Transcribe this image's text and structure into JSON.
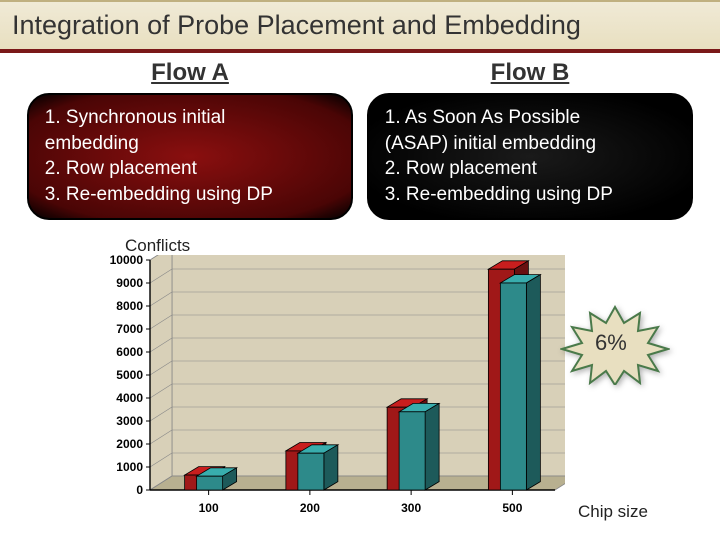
{
  "title": "Integration of Probe Placement and Embedding",
  "flowA": {
    "header": "Flow A",
    "lines": [
      "1. Synchronous initial",
      "embedding",
      "2. Row placement",
      "3. Re-embedding using DP"
    ]
  },
  "flowB": {
    "header": "Flow B",
    "lines": [
      "1. As Soon As Possible",
      "(ASAP) initial embedding",
      "2. Row placement",
      "3. Re-embedding using DP"
    ]
  },
  "chart": {
    "type": "3d-bar",
    "ylabel": "Conflicts",
    "xlabel": "Chip size",
    "categories": [
      "100",
      "200",
      "300",
      "500"
    ],
    "seriesA": [
      650,
      1700,
      3600,
      9600
    ],
    "seriesB": [
      600,
      1600,
      3400,
      9000
    ],
    "colorA": "#a01818",
    "colorB": "#2d8a8a",
    "ylim": [
      0,
      10000
    ],
    "ytick_step": 1000,
    "yticks": [
      "0",
      "1000",
      "2000",
      "3000",
      "4000",
      "5000",
      "6000",
      "7000",
      "8000",
      "9000",
      "10000"
    ],
    "wall_color": "#d8d0b8",
    "floor_color": "#b8b090",
    "grid_color": "#888",
    "axis_label_fontsize": 12,
    "axis_label_weight": "bold"
  },
  "callout": {
    "text": "6%",
    "fill": "#e8dfc0",
    "stroke": "#4a7a4a"
  }
}
